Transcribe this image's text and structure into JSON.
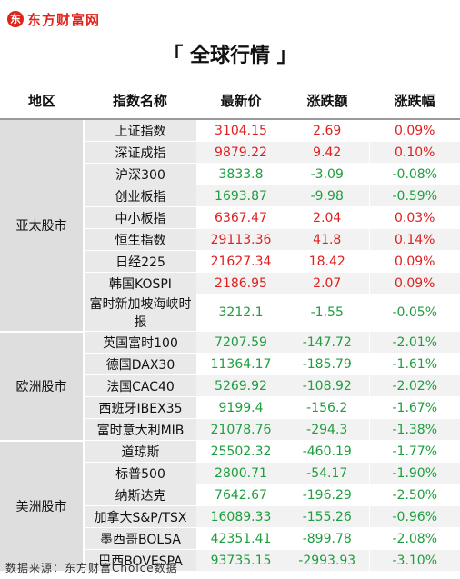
{
  "brand": {
    "name": "东方财富网",
    "mark": "东"
  },
  "title": "「 全球行情 」",
  "headers": [
    "地区",
    "指数名称",
    "最新价",
    "涨跌额",
    "涨跌幅"
  ],
  "groups": [
    {
      "region": "亚太股市",
      "rows": [
        {
          "name": "上证指数",
          "price": "3104.15",
          "chg": "2.69",
          "pct": "0.09%",
          "dir": "up"
        },
        {
          "name": "深证成指",
          "price": "9879.22",
          "chg": "9.42",
          "pct": "0.10%",
          "dir": "up"
        },
        {
          "name": "沪深300",
          "price": "3833.8",
          "chg": "-3.09",
          "pct": "-0.08%",
          "dir": "down"
        },
        {
          "name": "创业板指",
          "price": "1693.87",
          "chg": "-9.98",
          "pct": "-0.59%",
          "dir": "down"
        },
        {
          "name": "中小板指",
          "price": "6367.47",
          "chg": "2.04",
          "pct": "0.03%",
          "dir": "up"
        },
        {
          "name": "恒生指数",
          "price": "29113.36",
          "chg": "41.8",
          "pct": "0.14%",
          "dir": "up"
        },
        {
          "name": "日经225",
          "price": "21627.34",
          "chg": "18.42",
          "pct": "0.09%",
          "dir": "up"
        },
        {
          "name": "韩国KOSPI",
          "price": "2186.95",
          "chg": "2.07",
          "pct": "0.09%",
          "dir": "up"
        },
        {
          "name": "富时新加坡海峡时报",
          "price": "3212.1",
          "chg": "-1.55",
          "pct": "-0.05%",
          "dir": "down"
        }
      ]
    },
    {
      "region": "欧洲股市",
      "rows": [
        {
          "name": "英国富时100",
          "price": "7207.59",
          "chg": "-147.72",
          "pct": "-2.01%",
          "dir": "down"
        },
        {
          "name": "德国DAX30",
          "price": "11364.17",
          "chg": "-185.79",
          "pct": "-1.61%",
          "dir": "down"
        },
        {
          "name": "法国CAC40",
          "price": "5269.92",
          "chg": "-108.92",
          "pct": "-2.02%",
          "dir": "down"
        },
        {
          "name": "西班牙IBEX35",
          "price": "9199.4",
          "chg": "-156.2",
          "pct": "-1.67%",
          "dir": "down"
        },
        {
          "name": "富时意大利MIB",
          "price": "21078.76",
          "chg": "-294.3",
          "pct": "-1.38%",
          "dir": "down"
        }
      ]
    },
    {
      "region": "美洲股市",
      "rows": [
        {
          "name": "道琼斯",
          "price": "25502.32",
          "chg": "-460.19",
          "pct": "-1.77%",
          "dir": "down"
        },
        {
          "name": "标普500",
          "price": "2800.71",
          "chg": "-54.17",
          "pct": "-1.90%",
          "dir": "down"
        },
        {
          "name": "纳斯达克",
          "price": "7642.67",
          "chg": "-196.29",
          "pct": "-2.50%",
          "dir": "down"
        },
        {
          "name": "加拿大S&P/TSX",
          "price": "16089.33",
          "chg": "-155.26",
          "pct": "-0.96%",
          "dir": "down"
        },
        {
          "name": "墨西哥BOLSA",
          "price": "42351.41",
          "chg": "-899.78",
          "pct": "-2.08%",
          "dir": "down"
        },
        {
          "name": "巴西BOVESPA",
          "price": "93735.15",
          "chg": "-2993.93",
          "pct": "-3.10%",
          "dir": "down"
        }
      ]
    }
  ],
  "footer": "数据来源：东方财富Choice数据",
  "colors": {
    "up": "#e02020",
    "down": "#1e9e3e",
    "brand": "#e2231a"
  }
}
